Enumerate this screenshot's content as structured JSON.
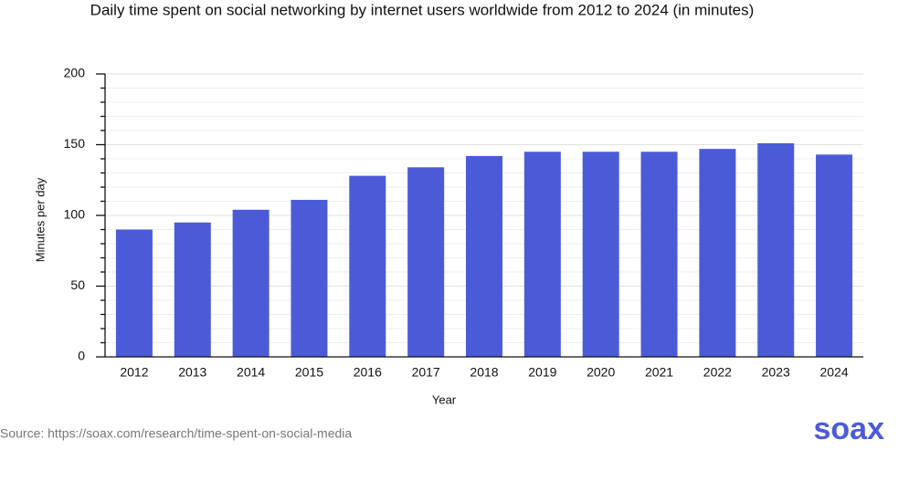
{
  "chart_data": {
    "type": "bar",
    "title": "Daily time spent on social networking by internet users worldwide from 2012 to 2024 (in minutes)",
    "categories": [
      "2012",
      "2013",
      "2014",
      "2015",
      "2016",
      "2017",
      "2018",
      "2019",
      "2020",
      "2021",
      "2022",
      "2023",
      "2024"
    ],
    "values": [
      90,
      95,
      104,
      111,
      128,
      134,
      142,
      145,
      145,
      145,
      147,
      151,
      143
    ],
    "color": "#4b5bd8",
    "ylim": [
      0,
      200
    ],
    "yticks": [
      0,
      50,
      100,
      150,
      200
    ],
    "minor_yticks": [
      10,
      20,
      30,
      40,
      60,
      70,
      80,
      90,
      110,
      120,
      130,
      140,
      160,
      170,
      180,
      190
    ],
    "grid": true,
    "xlabel": "Year",
    "ylabel": "Minutes per day",
    "source": "Source: https://soax.com/research/time-spent-on-social-media",
    "logo": "soax"
  }
}
